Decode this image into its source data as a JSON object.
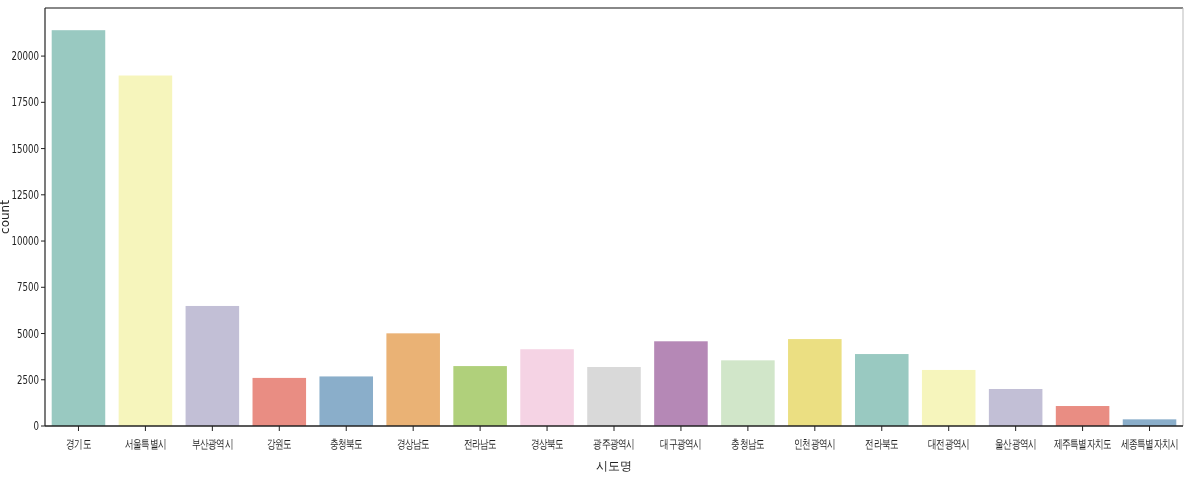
{
  "chart_data": {
    "type": "bar",
    "xlabel": "시도명",
    "ylabel": "count",
    "categories": [
      "경기도",
      "서울특별시",
      "부산광역시",
      "강원도",
      "충청북도",
      "경상남도",
      "전라남도",
      "경상북도",
      "광주광역시",
      "대구광역시",
      "충청남도",
      "인천광역시",
      "전라북도",
      "대전광역시",
      "울산광역시",
      "제주특별자치도",
      "세종특별자치시"
    ],
    "values": [
      21400,
      18950,
      6490,
      2600,
      2680,
      5010,
      3240,
      4150,
      3190,
      4580,
      3550,
      4700,
      3890,
      3030,
      2000,
      1080,
      360
    ],
    "colors": [
      "#99c9c1",
      "#f6f5bc",
      "#c2bfd6",
      "#e98d83",
      "#8aaeca",
      "#eab275",
      "#b0d07b",
      "#f5d3e4",
      "#d9d9d9",
      "#b588b6",
      "#d1e6c9",
      "#ebdf82",
      "#99c9c1",
      "#f6f5bc",
      "#c2bfd6",
      "#e98d83",
      "#8aaeca"
    ],
    "ylim": [
      0,
      22600
    ],
    "yticks": [
      0,
      2500,
      5000,
      7500,
      10000,
      12500,
      15000,
      17500,
      20000
    ]
  }
}
